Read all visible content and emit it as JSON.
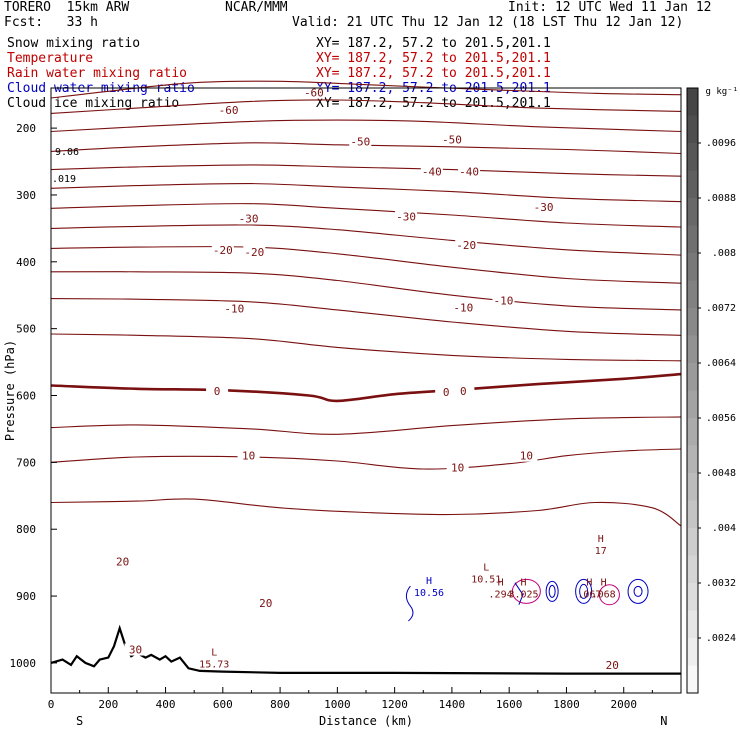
{
  "header": {
    "model": "TORERO  15km ARW",
    "center": "NCAR/MMM",
    "init": "Init: 12 UTC Wed 11 Jan 12",
    "fcst": "Fcst:   33 h",
    "valid": "Valid: 21 UTC Thu 12 Jan 12 (18 LST Thu 12 Jan 12)"
  },
  "fields": [
    {
      "label": "Snow mixing ratio",
      "xy": "XY= 187.2, 57.2 to 201.5,201.1",
      "color": "#000000"
    },
    {
      "label": "Temperature",
      "xy": "XY= 187.2, 57.2 to 201.5,201.1",
      "color": "#c00000"
    },
    {
      "label": "Rain water mixing ratio",
      "xy": "XY= 187.2, 57.2 to 201.5,201.1",
      "color": "#c00000"
    },
    {
      "label": "Cloud water mixing ratio",
      "xy": "XY= 187.2, 57.2 to 201.5,201.1",
      "color": "#0000c0"
    },
    {
      "label": "Cloud ice mixing ratio",
      "xy": "XY= 187.2, 57.2 to 201.5,201.1",
      "color": "#000000"
    }
  ],
  "chart_data": {
    "type": "contour-cross-section",
    "xlabel": "Distance (km)",
    "ylabel": "Pressure (hPa)",
    "xlim": [
      0,
      2200
    ],
    "ylim": [
      1045,
      140
    ],
    "x_ticks": [
      0,
      200,
      400,
      600,
      800,
      1000,
      1200,
      1400,
      1600,
      1800,
      2000
    ],
    "y_ticks": [
      200,
      300,
      400,
      500,
      600,
      700,
      800,
      900,
      1000
    ],
    "end_labels": {
      "left": "S",
      "right": "N"
    },
    "colorbar": {
      "unit": "g kg⁻¹",
      "levels": [
        ".0096",
        ".0088",
        ".008",
        ".0072",
        ".0064",
        ".0056",
        ".0048",
        ".004",
        ".0032",
        ".0024"
      ],
      "range": [
        0.0016,
        0.0104
      ]
    },
    "temperature_isotherms": [
      {
        "t": -60,
        "points": [
          [
            0,
            155
          ],
          [
            200,
            145
          ],
          [
            500,
            132
          ],
          [
            800,
            130
          ],
          [
            1100,
            135
          ],
          [
            1500,
            142
          ],
          [
            1900,
            148
          ],
          [
            2200,
            150
          ]
        ]
      },
      {
        "t": -55,
        "points": [
          [
            0,
            178
          ],
          [
            300,
            170
          ],
          [
            700,
            160
          ],
          [
            1000,
            158
          ],
          [
            1300,
            162
          ],
          [
            1700,
            170
          ],
          [
            2200,
            175
          ]
        ]
      },
      {
        "t": -50,
        "points": [
          [
            0,
            205
          ],
          [
            300,
            198
          ],
          [
            700,
            190
          ],
          [
            1000,
            188
          ],
          [
            1300,
            190
          ],
          [
            1700,
            198
          ],
          [
            2200,
            205
          ]
        ]
      },
      {
        "t": -45,
        "points": [
          [
            0,
            235
          ],
          [
            300,
            228
          ],
          [
            700,
            222
          ],
          [
            1000,
            225
          ],
          [
            1400,
            228
          ],
          [
            1800,
            232
          ],
          [
            2200,
            238
          ]
        ]
      },
      {
        "t": -40,
        "points": [
          [
            0,
            262
          ],
          [
            300,
            258
          ],
          [
            700,
            255
          ],
          [
            1000,
            258
          ],
          [
            1400,
            262
          ],
          [
            1800,
            268
          ],
          [
            2200,
            272
          ]
        ]
      },
      {
        "t": -35,
        "points": [
          [
            0,
            290
          ],
          [
            300,
            286
          ],
          [
            700,
            283
          ],
          [
            1000,
            288
          ],
          [
            1400,
            295
          ],
          [
            1800,
            305
          ],
          [
            2200,
            310
          ]
        ]
      },
      {
        "t": -30,
        "points": [
          [
            0,
            320
          ],
          [
            300,
            316
          ],
          [
            700,
            313
          ],
          [
            1000,
            320
          ],
          [
            1400,
            330
          ],
          [
            1800,
            342
          ],
          [
            2200,
            348
          ]
        ]
      },
      {
        "t": -25,
        "points": [
          [
            0,
            350
          ],
          [
            300,
            347
          ],
          [
            700,
            345
          ],
          [
            1000,
            352
          ],
          [
            1400,
            368
          ],
          [
            1800,
            382
          ],
          [
            2200,
            390
          ]
        ]
      },
      {
        "t": -20,
        "points": [
          [
            0,
            380
          ],
          [
            300,
            378
          ],
          [
            700,
            378
          ],
          [
            1000,
            388
          ],
          [
            1400,
            408
          ],
          [
            1800,
            425
          ],
          [
            2200,
            432
          ]
        ]
      },
      {
        "t": -15,
        "points": [
          [
            0,
            415
          ],
          [
            300,
            415
          ],
          [
            700,
            417
          ],
          [
            1000,
            428
          ],
          [
            1400,
            450
          ],
          [
            1800,
            466
          ],
          [
            2200,
            472
          ]
        ]
      },
      {
        "t": -10,
        "points": [
          [
            0,
            455
          ],
          [
            300,
            456
          ],
          [
            700,
            460
          ],
          [
            1000,
            472
          ],
          [
            1400,
            490
          ],
          [
            1800,
            504
          ],
          [
            2200,
            510
          ]
        ]
      },
      {
        "t": -5,
        "points": [
          [
            0,
            508
          ],
          [
            300,
            510
          ],
          [
            700,
            515
          ],
          [
            1000,
            528
          ],
          [
            1400,
            540
          ],
          [
            1800,
            546
          ],
          [
            2200,
            548
          ]
        ]
      },
      {
        "t": 0,
        "points": [
          [
            0,
            585
          ],
          [
            300,
            590
          ],
          [
            600,
            592
          ],
          [
            900,
            600
          ],
          [
            1000,
            608
          ],
          [
            1200,
            598
          ],
          [
            1400,
            592
          ],
          [
            1700,
            583
          ],
          [
            2000,
            575
          ],
          [
            2200,
            568
          ]
        ]
      },
      {
        "t": 5,
        "points": [
          [
            0,
            648
          ],
          [
            300,
            644
          ],
          [
            700,
            650
          ],
          [
            1000,
            658
          ],
          [
            1400,
            645
          ],
          [
            1800,
            635
          ],
          [
            2200,
            632
          ]
        ]
      },
      {
        "t": 10,
        "points": [
          [
            0,
            700
          ],
          [
            300,
            692
          ],
          [
            700,
            692
          ],
          [
            1000,
            698
          ],
          [
            1300,
            710
          ],
          [
            1600,
            702
          ],
          [
            1800,
            690
          ],
          [
            2000,
            683
          ],
          [
            2200,
            680
          ]
        ]
      },
      {
        "t": 15,
        "points": [
          [
            0,
            760
          ],
          [
            300,
            758
          ],
          [
            500,
            755
          ],
          [
            800,
            768
          ],
          [
            1100,
            775
          ],
          [
            1400,
            778
          ],
          [
            1700,
            772
          ],
          [
            1900,
            760
          ],
          [
            2100,
            768
          ],
          [
            2200,
            795
          ]
        ]
      }
    ],
    "temperature_labels": [
      {
        "text": "-60",
        "x": 620,
        "y": 173
      },
      {
        "text": "-60",
        "x": 918,
        "y": 147
      },
      {
        "text": "-50",
        "x": 1080,
        "y": 220
      },
      {
        "text": "-50",
        "x": 1400,
        "y": 217
      },
      {
        "text": "-40",
        "x": 1330,
        "y": 265
      },
      {
        "text": "-40",
        "x": 1460,
        "y": 265
      },
      {
        "text": "-30",
        "x": 690,
        "y": 335
      },
      {
        "text": "-30",
        "x": 1240,
        "y": 332
      },
      {
        "text": "-30",
        "x": 1720,
        "y": 318
      },
      {
        "text": "-20",
        "x": 600,
        "y": 382
      },
      {
        "text": "-20",
        "x": 710,
        "y": 385
      },
      {
        "text": "-20",
        "x": 1450,
        "y": 375
      },
      {
        "text": "-10",
        "x": 640,
        "y": 470
      },
      {
        "text": "-10",
        "x": 1440,
        "y": 468
      },
      {
        "text": "-10",
        "x": 1580,
        "y": 458
      },
      {
        "text": "0",
        "x": 580,
        "y": 593
      },
      {
        "text": "0",
        "x": 1380,
        "y": 595
      },
      {
        "text": "0",
        "x": 1440,
        "y": 593
      },
      {
        "text": "10",
        "x": 690,
        "y": 690
      },
      {
        "text": "10",
        "x": 1420,
        "y": 708
      },
      {
        "text": "10",
        "x": 1660,
        "y": 690
      },
      {
        "text": "20",
        "x": 250,
        "y": 848
      },
      {
        "text": "20",
        "x": 750,
        "y": 910
      },
      {
        "text": "20",
        "x": 1960,
        "y": 1003
      },
      {
        "text": "30",
        "x": 295,
        "y": 980
      }
    ],
    "extrema": [
      {
        "kind": "H",
        "value": "17",
        "x": 1920,
        "y": 825
      },
      {
        "kind": "H",
        "value": "10.56",
        "x": 1320,
        "y": 888
      },
      {
        "kind": "L",
        "value": "10.51",
        "x": 1520,
        "y": 868
      },
      {
        "kind": "H",
        "value": ".294",
        "x": 1570,
        "y": 890
      },
      {
        "kind": "H",
        "value": "3.025",
        "x": 1650,
        "y": 890
      },
      {
        "kind": "H",
        "value": ".067",
        "x": 1880,
        "y": 890
      },
      {
        "kind": "H",
        "value": ".068",
        "x": 1930,
        "y": 890
      },
      {
        "kind": "L",
        "value": "15.73",
        "x": 570,
        "y": 995
      }
    ],
    "edge_labels": [
      "9.06",
      ".019"
    ],
    "terrain": [
      [
        0,
        1000
      ],
      [
        40,
        995
      ],
      [
        70,
        1003
      ],
      [
        90,
        990
      ],
      [
        120,
        1000
      ],
      [
        150,
        1005
      ],
      [
        170,
        995
      ],
      [
        200,
        992
      ],
      [
        220,
        975
      ],
      [
        240,
        948
      ],
      [
        260,
        975
      ],
      [
        280,
        990
      ],
      [
        300,
        985
      ],
      [
        330,
        992
      ],
      [
        350,
        988
      ],
      [
        380,
        995
      ],
      [
        400,
        990
      ],
      [
        420,
        998
      ],
      [
        450,
        992
      ],
      [
        480,
        1008
      ],
      [
        520,
        1012
      ],
      [
        600,
        1013
      ],
      [
        800,
        1015
      ],
      [
        1200,
        1015
      ],
      [
        1800,
        1016
      ],
      [
        2200,
        1016
      ]
    ]
  }
}
